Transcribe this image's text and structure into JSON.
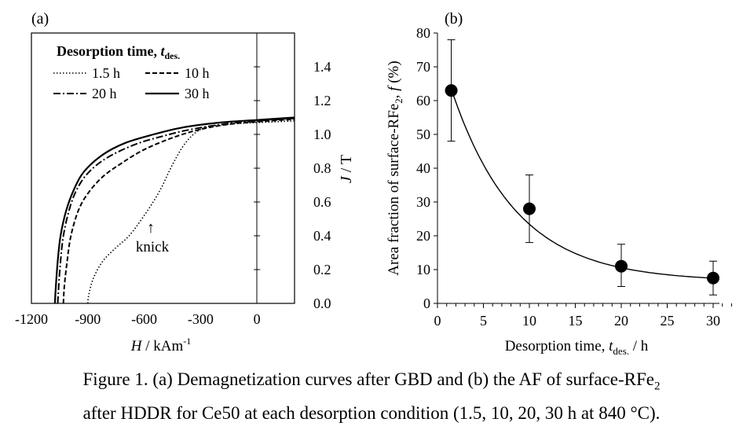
{
  "figure": {
    "caption_line1": "Figure 1. (a) Demagnetization curves after GBD and (b) the AF of surface-RFe",
    "caption_sub1": "2",
    "caption_line2": "after HDDR for Ce50 at each desorption condition (1.5, 10, 20, 30 h at 840 °C)."
  },
  "chart_data": [
    {
      "panel_label": "(a)",
      "type": "line",
      "xlabel_main": "H",
      "xlabel_unit": " / kAm",
      "xlabel_sup": "-1",
      "ylabel_main": "J",
      "ylabel_unit": " / T",
      "xlim": [
        -1200,
        200
      ],
      "ylim": [
        0,
        1.6
      ],
      "x_ticks": [
        -1200,
        -900,
        -600,
        -300,
        0
      ],
      "y_ticks": [
        0.0,
        0.2,
        0.4,
        0.6,
        0.8,
        1.0,
        1.2,
        1.4
      ],
      "y_tick_labels": [
        "0.0",
        "0.2",
        "0.4",
        "0.6",
        "0.8",
        "1.0",
        "1.2",
        "1.4"
      ],
      "legend_title_main": "Desorption time, ",
      "legend_title_var": "t",
      "legend_title_sub": "des.",
      "legend_position": "top-left",
      "annotation": {
        "text": "knick",
        "arrow": "↑",
        "x": -530,
        "y": 0.45
      },
      "series": [
        {
          "name": "1.5 h",
          "dash": "dotted",
          "x": [
            -900,
            -895,
            -870,
            -820,
            -750,
            -680,
            -600,
            -520,
            -450,
            -380,
            -300,
            -200,
            -100,
            0,
            100,
            200
          ],
          "y": [
            0.0,
            0.05,
            0.15,
            0.25,
            0.33,
            0.4,
            0.52,
            0.66,
            0.82,
            0.95,
            1.03,
            1.055,
            1.065,
            1.07,
            1.075,
            1.08
          ]
        },
        {
          "name": "10 h",
          "dash": "dashed",
          "x": [
            -1030,
            -1025,
            -1010,
            -990,
            -950,
            -900,
            -820,
            -720,
            -600,
            -450,
            -300,
            -150,
            0,
            200
          ],
          "y": [
            0.0,
            0.1,
            0.25,
            0.4,
            0.55,
            0.65,
            0.75,
            0.83,
            0.91,
            0.98,
            1.03,
            1.06,
            1.075,
            1.09
          ]
        },
        {
          "name": "20 h",
          "dash": "dashdot",
          "x": [
            -1060,
            -1055,
            -1045,
            -1030,
            -1000,
            -960,
            -900,
            -800,
            -650,
            -500,
            -350,
            -150,
            0,
            200
          ],
          "y": [
            0.0,
            0.1,
            0.25,
            0.4,
            0.55,
            0.67,
            0.77,
            0.86,
            0.94,
            0.99,
            1.03,
            1.065,
            1.08,
            1.095
          ]
        },
        {
          "name": "30 h",
          "dash": "solid",
          "x": [
            -1075,
            -1070,
            -1060,
            -1045,
            -1015,
            -975,
            -920,
            -820,
            -700,
            -550,
            -400,
            -200,
            0,
            200
          ],
          "y": [
            0.0,
            0.1,
            0.25,
            0.4,
            0.55,
            0.67,
            0.78,
            0.88,
            0.95,
            1.0,
            1.04,
            1.07,
            1.085,
            1.1
          ]
        }
      ]
    },
    {
      "panel_label": "(b)",
      "type": "scatter",
      "xlabel_main": "Desorption time, ",
      "xlabel_var": "t",
      "xlabel_sub": "des.",
      "xlabel_unit": " / h",
      "ylabel_main": "Area fraction of surface-RFe",
      "ylabel_sub": "2",
      "ylabel_var_prefix": ",  ",
      "ylabel_var": "f",
      "ylabel_unit": " (%)",
      "xlim": [
        0,
        32
      ],
      "ylim": [
        0,
        80
      ],
      "x_ticks": [
        0,
        5,
        10,
        15,
        20,
        25,
        30
      ],
      "y_ticks": [
        0,
        10,
        20,
        30,
        40,
        50,
        60,
        70,
        80
      ],
      "points": [
        {
          "x": 1.5,
          "y": 63,
          "err_low": 48,
          "err_high": 78
        },
        {
          "x": 10,
          "y": 28,
          "err_low": 18,
          "err_high": 38
        },
        {
          "x": 20,
          "y": 11,
          "err_low": 5,
          "err_high": 17.5
        },
        {
          "x": 30,
          "y": 7.5,
          "err_low": 2.5,
          "err_high": 12.5
        }
      ],
      "fit": {
        "form": "exponential decay",
        "a": 63.5,
        "tau": 7.0,
        "c": 6.5
      }
    }
  ]
}
